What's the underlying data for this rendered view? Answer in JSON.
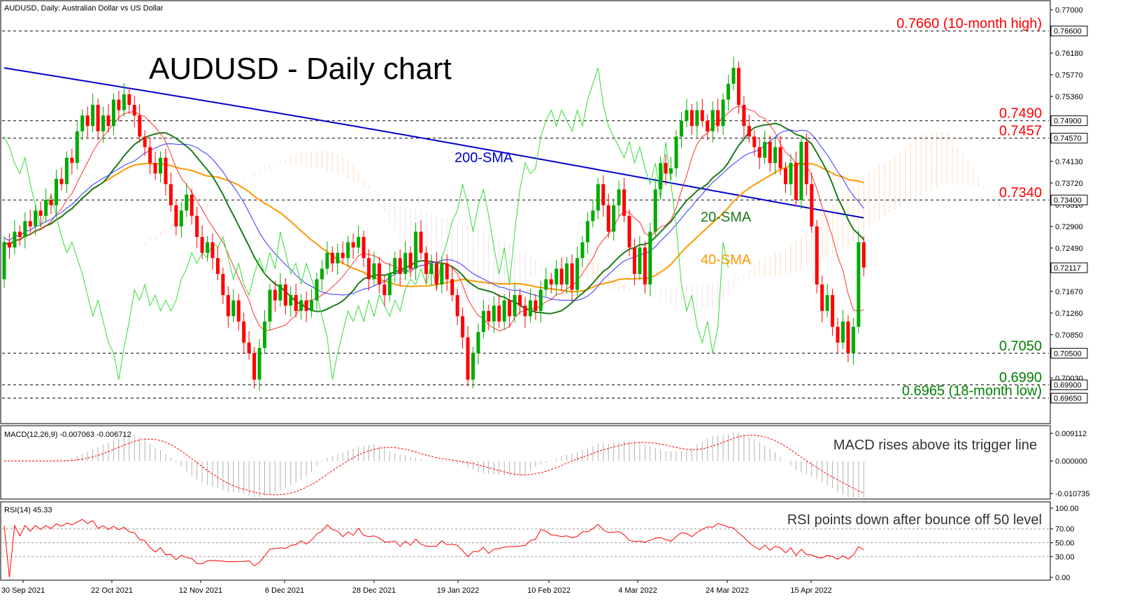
{
  "chart_data": {
    "type": "candlestick",
    "symbol_header": "AUDUSD, Daily:  Australian Dollar vs US Dollar",
    "title": "AUDUSD - Daily chart",
    "x_ticks": [
      "30 Sep 2021",
      "22 Oct 2021",
      "12 Nov 2021",
      "6 Dec 2021",
      "28 Dec 2021",
      "19 Jan 2022",
      "10 Feb 2022",
      "4 Mar 2022",
      "24 Mar 2022",
      "15 Apr 2022"
    ],
    "y_ticks": [
      "0.77000",
      "0.76180",
      "0.75770",
      "0.75360",
      "0.74950",
      "0.74570",
      "0.74130",
      "0.73720",
      "0.73310",
      "0.72900",
      "0.72490",
      "0.71670",
      "0.71260",
      "0.70850",
      "0.70030"
    ],
    "ylim": [
      0.693,
      0.77
    ],
    "price_boxes": [
      "0.76600",
      "0.74900",
      "0.74570",
      "0.73400",
      "0.72117",
      "0.70500",
      "0.69900",
      "0.69650"
    ],
    "levels": [
      {
        "value": 0.766,
        "label": "0.7660 (10-month high)",
        "color": "#ff0000"
      },
      {
        "value": 0.749,
        "label": "0.7490",
        "color": "#ff0000"
      },
      {
        "value": 0.7457,
        "label": "0.7457",
        "color": "#ff0000"
      },
      {
        "value": 0.734,
        "label": "0.7340",
        "color": "#ff0000"
      },
      {
        "value": 0.705,
        "label": "0.7050",
        "color": "#008000"
      },
      {
        "value": 0.699,
        "label": "0.6990",
        "color": "#008000"
      },
      {
        "value": 0.6965,
        "label": "0.6965 (18-month low)",
        "color": "#008000"
      }
    ],
    "annotations": {
      "sma200": "200-SMA",
      "sma20": "20-SMA",
      "sma40": "40-SMA"
    },
    "candles": [
      [
        0.719,
        0.726
      ],
      [
        0.726,
        0.725
      ],
      [
        0.725,
        0.728
      ],
      [
        0.728,
        0.727
      ],
      [
        0.727,
        0.73
      ],
      [
        0.73,
        0.729
      ],
      [
        0.729,
        0.732
      ],
      [
        0.732,
        0.731
      ],
      [
        0.731,
        0.734
      ],
      [
        0.734,
        0.733
      ],
      [
        0.733,
        0.738
      ],
      [
        0.738,
        0.737
      ],
      [
        0.737,
        0.742
      ],
      [
        0.742,
        0.741
      ],
      [
        0.741,
        0.747
      ],
      [
        0.747,
        0.75
      ],
      [
        0.75,
        0.748
      ],
      [
        0.748,
        0.752
      ],
      [
        0.752,
        0.747
      ],
      [
        0.747,
        0.75
      ],
      [
        0.75,
        0.748
      ],
      [
        0.748,
        0.753
      ],
      [
        0.753,
        0.751
      ],
      [
        0.751,
        0.754
      ],
      [
        0.754,
        0.752
      ],
      [
        0.752,
        0.75
      ],
      [
        0.75,
        0.746
      ],
      [
        0.746,
        0.744
      ],
      [
        0.744,
        0.741
      ],
      [
        0.741,
        0.739
      ],
      [
        0.739,
        0.742
      ],
      [
        0.742,
        0.737
      ],
      [
        0.737,
        0.733
      ],
      [
        0.733,
        0.729
      ],
      [
        0.729,
        0.732
      ],
      [
        0.732,
        0.735
      ],
      [
        0.735,
        0.731
      ],
      [
        0.731,
        0.727
      ],
      [
        0.727,
        0.724
      ],
      [
        0.724,
        0.726
      ],
      [
        0.726,
        0.723
      ],
      [
        0.723,
        0.72
      ],
      [
        0.72,
        0.716
      ],
      [
        0.716,
        0.712
      ],
      [
        0.712,
        0.715
      ],
      [
        0.715,
        0.711
      ],
      [
        0.711,
        0.707
      ],
      [
        0.707,
        0.705
      ],
      [
        0.705,
        0.7
      ],
      [
        0.7,
        0.706
      ],
      [
        0.706,
        0.711
      ],
      [
        0.711,
        0.717
      ],
      [
        0.717,
        0.715
      ],
      [
        0.715,
        0.718
      ],
      [
        0.718,
        0.714
      ],
      [
        0.714,
        0.716
      ],
      [
        0.716,
        0.713
      ],
      [
        0.713,
        0.715
      ],
      [
        0.715,
        0.713
      ],
      [
        0.713,
        0.715
      ],
      [
        0.715,
        0.719
      ],
      [
        0.719,
        0.721
      ],
      [
        0.721,
        0.724
      ],
      [
        0.724,
        0.722
      ],
      [
        0.722,
        0.724
      ],
      [
        0.724,
        0.723
      ],
      [
        0.723,
        0.726
      ],
      [
        0.726,
        0.725
      ],
      [
        0.725,
        0.727
      ],
      [
        0.727,
        0.723
      ],
      [
        0.723,
        0.719
      ],
      [
        0.719,
        0.722
      ],
      [
        0.722,
        0.718
      ],
      [
        0.718,
        0.716
      ],
      [
        0.716,
        0.72
      ],
      [
        0.72,
        0.723
      ],
      [
        0.723,
        0.72
      ],
      [
        0.72,
        0.724
      ],
      [
        0.724,
        0.721
      ],
      [
        0.721,
        0.728
      ],
      [
        0.728,
        0.724
      ],
      [
        0.724,
        0.72
      ],
      [
        0.72,
        0.722
      ],
      [
        0.722,
        0.718
      ],
      [
        0.718,
        0.722
      ],
      [
        0.722,
        0.719
      ],
      [
        0.719,
        0.716
      ],
      [
        0.716,
        0.712
      ],
      [
        0.712,
        0.708
      ],
      [
        0.708,
        0.7
      ],
      [
        0.7,
        0.705
      ],
      [
        0.705,
        0.709
      ],
      [
        0.709,
        0.713
      ],
      [
        0.713,
        0.711
      ],
      [
        0.711,
        0.714
      ],
      [
        0.714,
        0.711
      ],
      [
        0.711,
        0.715
      ],
      [
        0.715,
        0.712
      ],
      [
        0.712,
        0.716
      ],
      [
        0.716,
        0.714
      ],
      [
        0.714,
        0.712
      ],
      [
        0.712,
        0.715
      ],
      [
        0.715,
        0.713
      ],
      [
        0.713,
        0.717
      ],
      [
        0.717,
        0.719
      ],
      [
        0.719,
        0.718
      ],
      [
        0.718,
        0.721
      ],
      [
        0.721,
        0.718
      ],
      [
        0.718,
        0.722
      ],
      [
        0.722,
        0.717
      ],
      [
        0.717,
        0.723
      ],
      [
        0.723,
        0.726
      ],
      [
        0.726,
        0.73
      ],
      [
        0.73,
        0.732
      ],
      [
        0.732,
        0.737
      ],
      [
        0.737,
        0.733
      ],
      [
        0.733,
        0.728
      ],
      [
        0.728,
        0.733
      ],
      [
        0.733,
        0.736
      ],
      [
        0.736,
        0.731
      ],
      [
        0.731,
        0.725
      ],
      [
        0.725,
        0.72
      ],
      [
        0.72,
        0.725
      ],
      [
        0.725,
        0.718
      ],
      [
        0.718,
        0.728
      ],
      [
        0.728,
        0.736
      ],
      [
        0.736,
        0.741
      ],
      [
        0.741,
        0.739
      ],
      [
        0.739,
        0.74
      ],
      [
        0.74,
        0.746
      ],
      [
        0.746,
        0.749
      ],
      [
        0.749,
        0.751
      ],
      [
        0.751,
        0.748
      ],
      [
        0.748,
        0.751
      ],
      [
        0.751,
        0.749
      ],
      [
        0.749,
        0.747
      ],
      [
        0.747,
        0.751
      ],
      [
        0.751,
        0.748
      ],
      [
        0.748,
        0.753
      ],
      [
        0.753,
        0.756
      ],
      [
        0.756,
        0.759
      ],
      [
        0.759,
        0.752
      ],
      [
        0.752,
        0.748
      ],
      [
        0.748,
        0.746
      ],
      [
        0.746,
        0.744
      ],
      [
        0.744,
        0.742
      ],
      [
        0.742,
        0.745
      ],
      [
        0.745,
        0.741
      ],
      [
        0.741,
        0.744
      ],
      [
        0.744,
        0.74
      ],
      [
        0.74,
        0.737
      ],
      [
        0.737,
        0.741
      ],
      [
        0.741,
        0.734
      ],
      [
        0.734,
        0.745
      ],
      [
        0.745,
        0.737
      ],
      [
        0.737,
        0.729
      ],
      [
        0.729,
        0.718
      ],
      [
        0.718,
        0.713
      ],
      [
        0.713,
        0.716
      ],
      [
        0.716,
        0.71
      ],
      [
        0.71,
        0.707
      ],
      [
        0.707,
        0.711
      ],
      [
        0.711,
        0.705
      ],
      [
        0.705,
        0.71
      ],
      [
        0.71,
        0.726
      ],
      [
        0.726,
        0.7212
      ]
    ],
    "macd": {
      "label": "MACD(12,26,9) -0.007063 -0.006712",
      "y_ticks": [
        "0.009112",
        "0.000000",
        "-0.010735"
      ],
      "annotation": "MACD rises above its trigger line"
    },
    "rsi": {
      "label": "RSI(14) 45.33",
      "y_ticks": [
        "100.00",
        "70.00",
        "50.00",
        "30.00",
        "0.00"
      ],
      "annotation": "RSI points down after bounce off 50 level"
    }
  }
}
